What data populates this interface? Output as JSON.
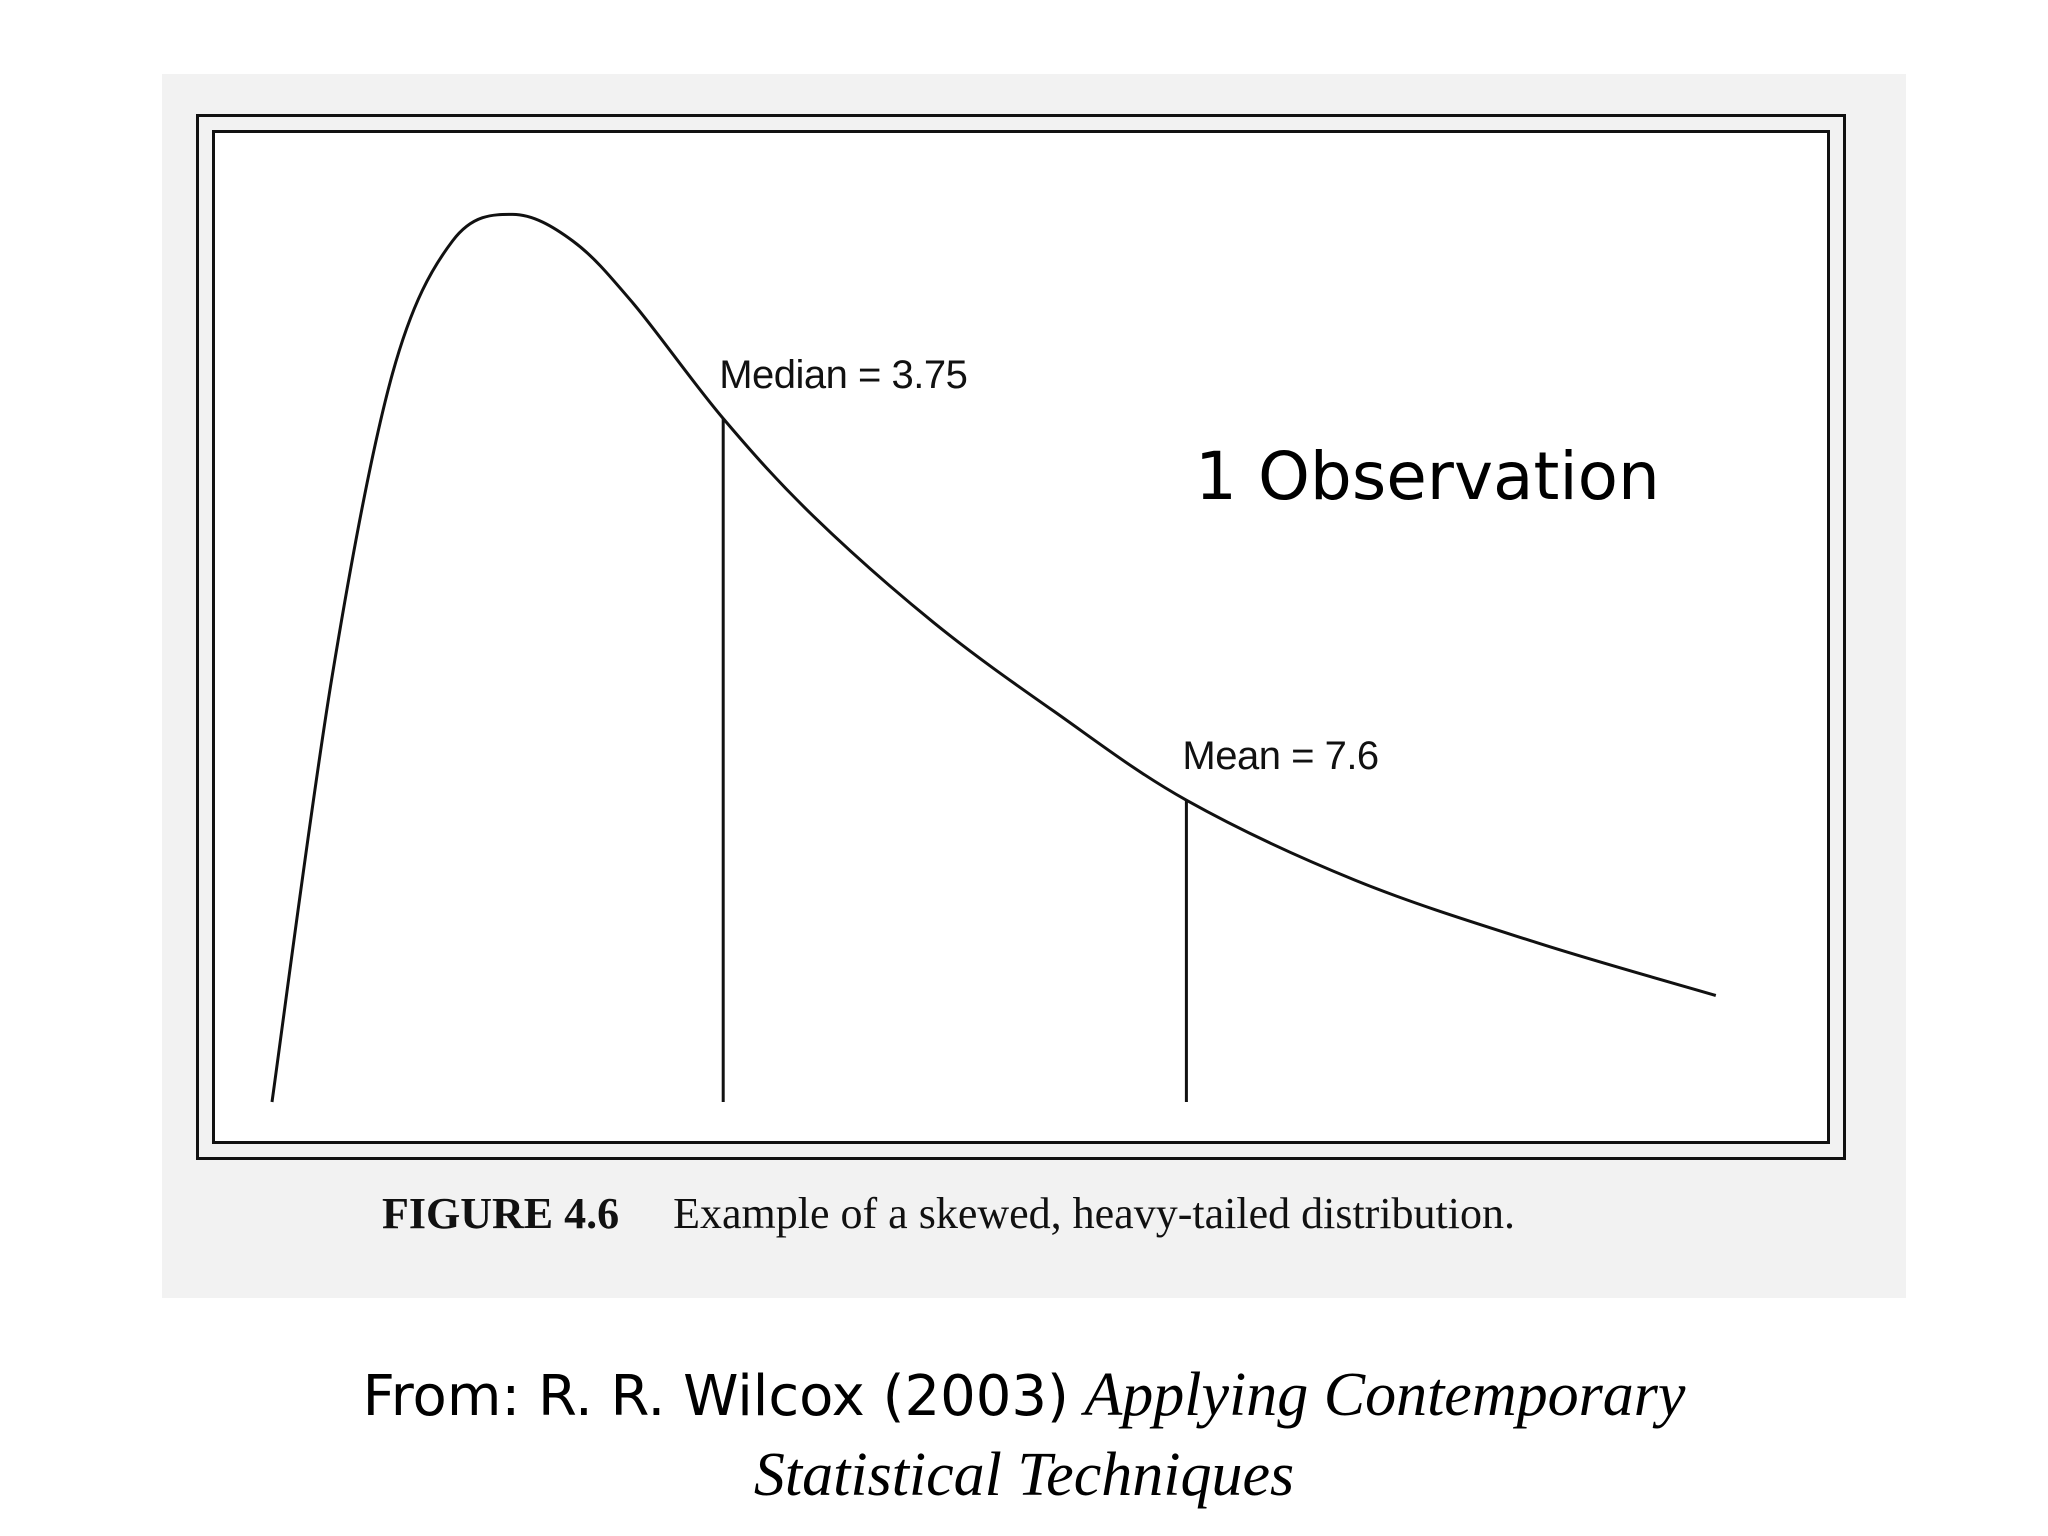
{
  "chart_data": {
    "type": "line",
    "title": "",
    "xlabel": "",
    "ylabel": "",
    "series": [
      {
        "name": "",
        "description_shape": "right-skewed heavy-tailed density",
        "x": [
          0.0,
          0.5,
          1.0,
          1.5,
          2.0,
          2.5,
          3.0,
          3.75,
          4.5,
          5.5,
          6.5,
          7.6,
          9.0,
          10.5,
          12.0
        ],
        "y": [
          0.0,
          0.48,
          0.82,
          0.97,
          1.0,
          0.97,
          0.9,
          0.77,
          0.66,
          0.54,
          0.44,
          0.34,
          0.25,
          0.18,
          0.12
        ]
      }
    ],
    "xlim": [
      0,
      12.5
    ],
    "ylim": [
      0,
      1.05
    ],
    "grid": false,
    "annotations": [
      {
        "label": "Median = 3.75",
        "x": 3.75
      },
      {
        "label": "Mean = 7.6",
        "x": 7.6
      }
    ],
    "overlay_note": "1 Observation"
  },
  "caption": {
    "figure_label": "FIGURE 4.6",
    "text": "Example of a skewed, heavy-tailed distribution."
  },
  "source": {
    "prefix": "From: R. R. Wilcox (2003)",
    "book_line1": "Applying Contemporary",
    "book_line2": "Statistical Techniques"
  }
}
